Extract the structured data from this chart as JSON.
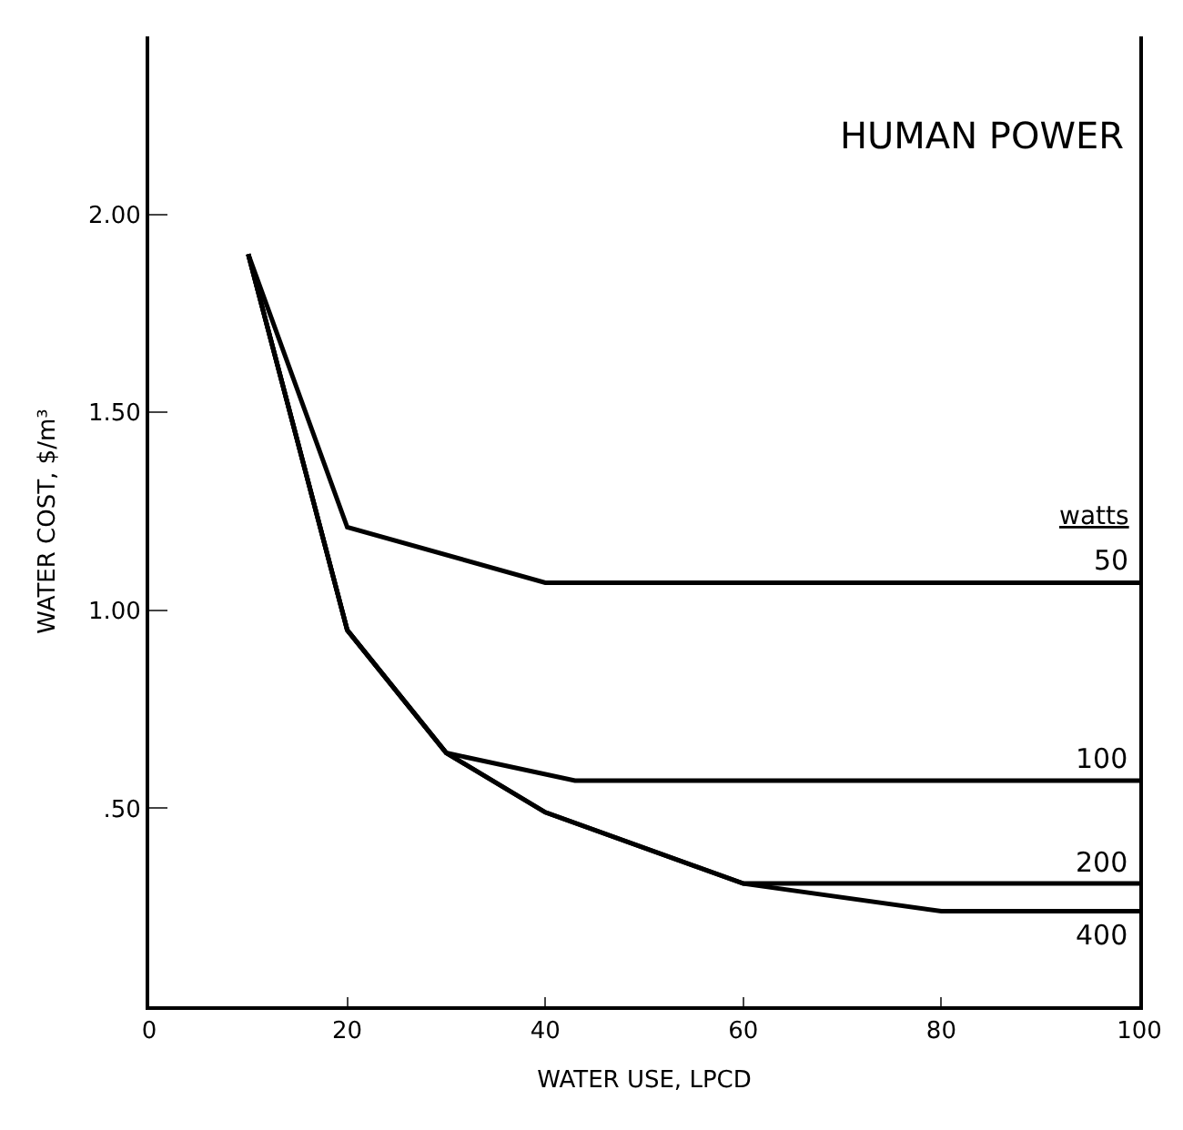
{
  "chart_data": {
    "type": "line",
    "title": "HUMAN POWER",
    "xlabel": "WATER USE, LPCD",
    "ylabel": "WATER COST, $/m³",
    "legend_title": "watts",
    "xlim": [
      0,
      100
    ],
    "xticks": [
      0,
      20,
      40,
      60,
      80,
      100
    ],
    "ylim": [
      0,
      2.45
    ],
    "yticks": [
      {
        "value": 0.5,
        "label": ".50"
      },
      {
        "value": 1.0,
        "label": "1.00"
      },
      {
        "value": 1.5,
        "label": "1.50"
      },
      {
        "value": 2.0,
        "label": "2.00"
      }
    ],
    "legend": false,
    "marker": "none",
    "line_style": "solid",
    "series": [
      {
        "name": "50",
        "color": "#000000",
        "x": [
          10,
          20,
          40,
          100
        ],
        "values": [
          1.9,
          1.21,
          1.07,
          1.07
        ]
      },
      {
        "name": "100",
        "color": "#000000",
        "x": [
          10,
          20,
          30,
          43,
          100
        ],
        "values": [
          1.9,
          0.95,
          0.64,
          0.57,
          0.57
        ]
      },
      {
        "name": "200",
        "color": "#000000",
        "x": [
          10,
          20,
          30,
          40,
          60,
          100
        ],
        "values": [
          1.9,
          0.95,
          0.64,
          0.49,
          0.31,
          0.31
        ]
      },
      {
        "name": "400",
        "color": "#000000",
        "x": [
          10,
          20,
          30,
          40,
          60,
          80,
          100
        ],
        "values": [
          1.9,
          0.95,
          0.64,
          0.49,
          0.31,
          0.24,
          0.24
        ]
      }
    ]
  }
}
